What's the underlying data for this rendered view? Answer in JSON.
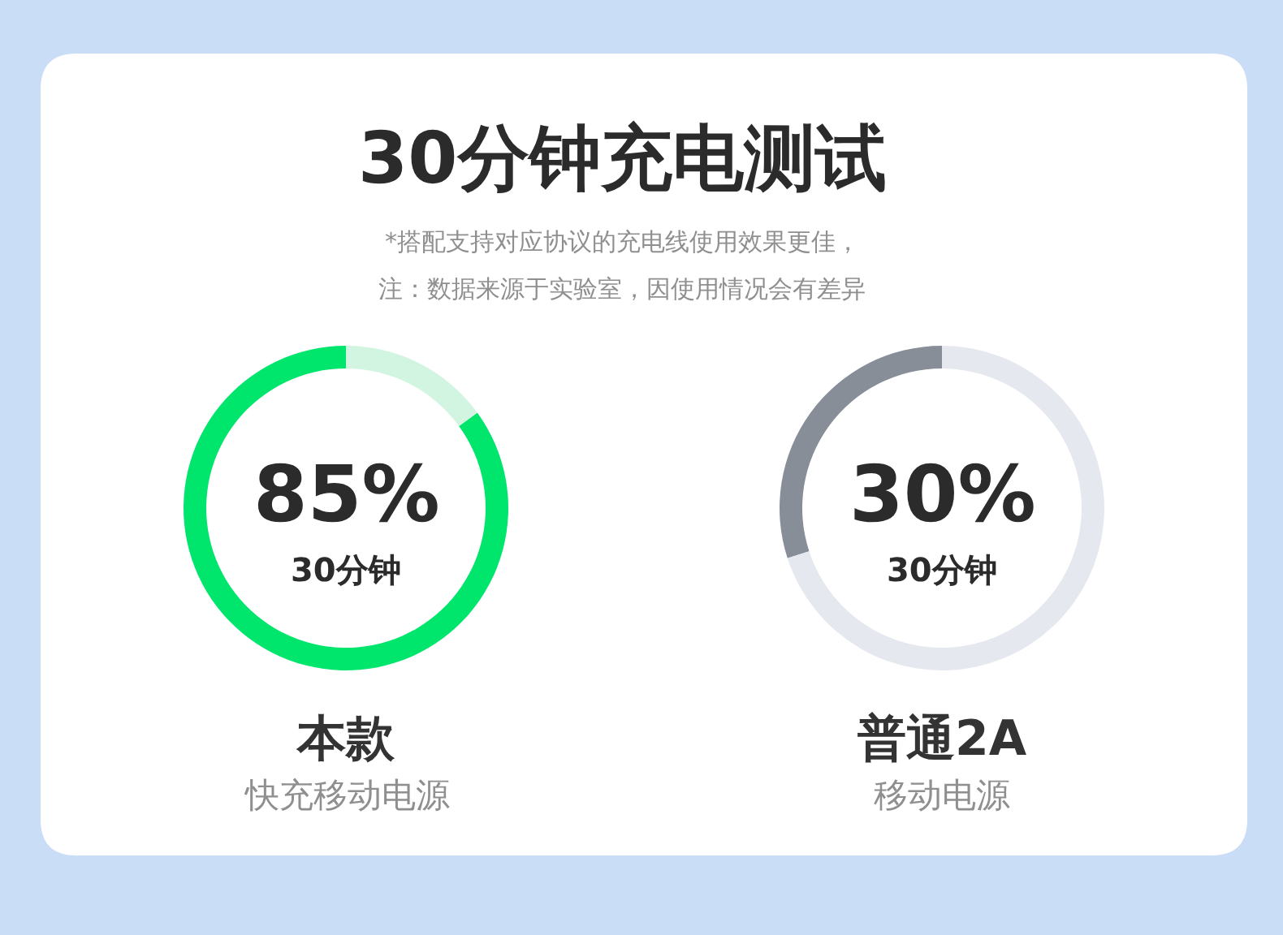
{
  "chart_data": [
    {
      "type": "donut",
      "title": "30分钟充电测试",
      "subtitle": "*搭配支持对应协议的充电线使用效果更佳，",
      "categories": [
        null,
        null
      ],
      "values": [
        85,
        15
      ],
      "colors": [
        "#00e66c",
        "#d2f5e2"
      ],
      "value_labels": [
        "85%",
        null
      ],
      "annotations": [
        "注：数据来源于实验室，因使用情况会有差异",
        "30分钟",
        "本款",
        "快充移动电源"
      ]
    },
    {
      "type": "donut",
      "categories": [
        null,
        null
      ],
      "values": [
        30,
        70
      ],
      "colors": [
        "#878e98",
        "#e5e8ee"
      ],
      "value_labels": [
        "30%",
        null
      ],
      "annotations": [
        "30分钟",
        "普通2A",
        "移动电源"
      ]
    }
  ]
}
